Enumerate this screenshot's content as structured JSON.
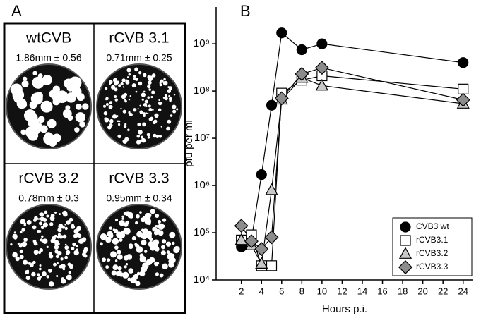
{
  "panel_a": {
    "label": "A",
    "cells": [
      {
        "title": "wtCVB",
        "size": "1.86mm ± 0.56"
      },
      {
        "title": "rCVB 3.1",
        "size": "0.71mm ± 0.25"
      },
      {
        "title": "rCVB 3.2",
        "size": "0.78mm ± 0.3"
      },
      {
        "title": "rCVB 3.3",
        "size": "0.95mm ± 0.34"
      }
    ]
  },
  "chart_data": {
    "type": "line",
    "panel_label": "B",
    "x_label": "Hours p.i.",
    "y_label": "pfu per ml",
    "log_y": true,
    "grid": false,
    "legend": "lower right",
    "x": [
      2,
      3,
      4,
      5,
      6,
      8,
      10,
      24
    ],
    "xlim": [
      -0.5,
      25
    ],
    "xticks": [
      2,
      4,
      6,
      8,
      10,
      12,
      14,
      16,
      18,
      20,
      22,
      24
    ],
    "ylim": [
      10000,
      6000000000
    ],
    "yticks": [
      {
        "value": 10000,
        "label": "10⁴"
      },
      {
        "value": 100000,
        "label": "10⁵"
      },
      {
        "value": 1000000,
        "label": "10⁶"
      },
      {
        "value": 10000000,
        "label": "10⁷"
      },
      {
        "value": 100000000,
        "label": "10⁸"
      },
      {
        "value": 1000000000,
        "label": "10⁹"
      }
    ],
    "series": [
      {
        "name": "CVB3 wt",
        "color": "#000000",
        "marker": "circle",
        "values": [
          50000,
          70000,
          1700000,
          50000000,
          1700000000,
          750000000,
          1000000000,
          400000000
        ]
      },
      {
        "name": "rCVB3.1",
        "color": "#ffffff",
        "marker": "square",
        "values": [
          70000,
          90000,
          20000,
          20000,
          90000000,
          170000000,
          210000000,
          110000000
        ]
      },
      {
        "name": "rCVB3.2",
        "color": "#c8c8c8",
        "marker": "triangle",
        "values": [
          70000,
          54000,
          22000,
          800000,
          66000000,
          190000000,
          130000000,
          54000000
        ]
      },
      {
        "name": "rCVB3.3",
        "color": "#8c8c8c",
        "marker": "diamond",
        "values": [
          140000,
          66000,
          45000,
          80000,
          70000000,
          230000000,
          310000000,
          65000000
        ]
      }
    ]
  }
}
